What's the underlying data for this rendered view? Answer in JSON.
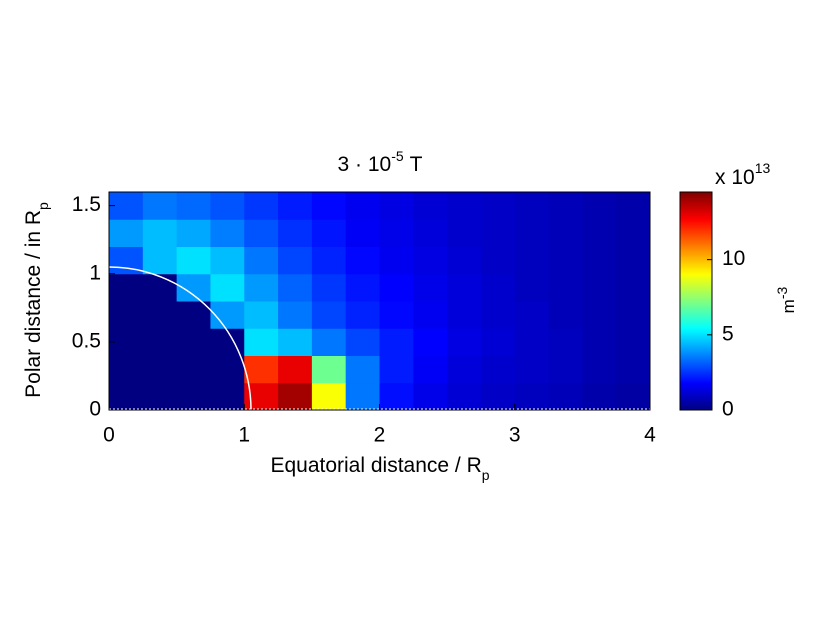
{
  "chart_data": {
    "type": "heatmap",
    "title": "3 · 10",
    "title_exponent": "-5",
    "title_unit": "T",
    "x_label": "Equatorial distance / R",
    "x_label_subscript": "p",
    "y_label": "Polar distance / in R",
    "y_label_subscript": "p",
    "colorbar_multiplier": "x 10",
    "colorbar_multiplier_exponent": "13",
    "colorbar_label": "m",
    "colorbar_label_exponent": "-3",
    "colormap": "jet",
    "x": [
      0,
      0.25,
      0.5,
      0.75,
      1,
      1.25,
      1.5,
      1.75,
      2,
      2.25,
      2.5,
      2.75,
      3,
      3.25,
      3.5,
      3.75,
      4
    ],
    "y": [
      0,
      0.2,
      0.4,
      0.6,
      0.8,
      1,
      1.2,
      1.4,
      1.6
    ],
    "z": [
      [
        0,
        0,
        0,
        0,
        13,
        14,
        9,
        3.5,
        2,
        1.5,
        1.2,
        1,
        0.9,
        0.8,
        0.6,
        0.5
      ],
      [
        0,
        0,
        0,
        0,
        12,
        13,
        7,
        3.5,
        2.2,
        1.7,
        1.3,
        1.1,
        1,
        0.9,
        0.7,
        0.6
      ],
      [
        0,
        0,
        0,
        0,
        5,
        4.5,
        3.5,
        2.8,
        2.2,
        1.8,
        1.4,
        1.2,
        1,
        0.9,
        0.7,
        0.6
      ],
      [
        0,
        0,
        0,
        4,
        4.5,
        3.5,
        2.8,
        2.3,
        1.9,
        1.6,
        1.3,
        1.1,
        1,
        0.8,
        0.7,
        0.6
      ],
      [
        0,
        0,
        4,
        5,
        4,
        3.2,
        2.6,
        2.1,
        1.8,
        1.5,
        1.3,
        1.1,
        0.9,
        0.8,
        0.7,
        0.6
      ],
      [
        3,
        4.5,
        5,
        4.5,
        3.5,
        2.8,
        2.3,
        1.9,
        1.6,
        1.4,
        1.2,
        1,
        0.9,
        0.8,
        0.7,
        0.6
      ],
      [
        4,
        4.5,
        4.2,
        3.6,
        3,
        2.5,
        2.1,
        1.7,
        1.5,
        1.3,
        1.1,
        1,
        0.9,
        0.8,
        0.7,
        0.6
      ],
      [
        3,
        3.5,
        3.3,
        3,
        2.6,
        2.2,
        1.9,
        1.6,
        1.4,
        1.2,
        1.1,
        1,
        0.9,
        0.8,
        0.7,
        0.6
      ]
    ],
    "xlim": [
      0,
      4
    ],
    "xticks": [
      0,
      1,
      2,
      3,
      4
    ],
    "ylim": [
      0,
      1.6
    ],
    "yticks": [
      0,
      0.5,
      1,
      1.5
    ],
    "clim": [
      0,
      14.5
    ],
    "cticks": [
      0,
      5,
      10
    ]
  }
}
